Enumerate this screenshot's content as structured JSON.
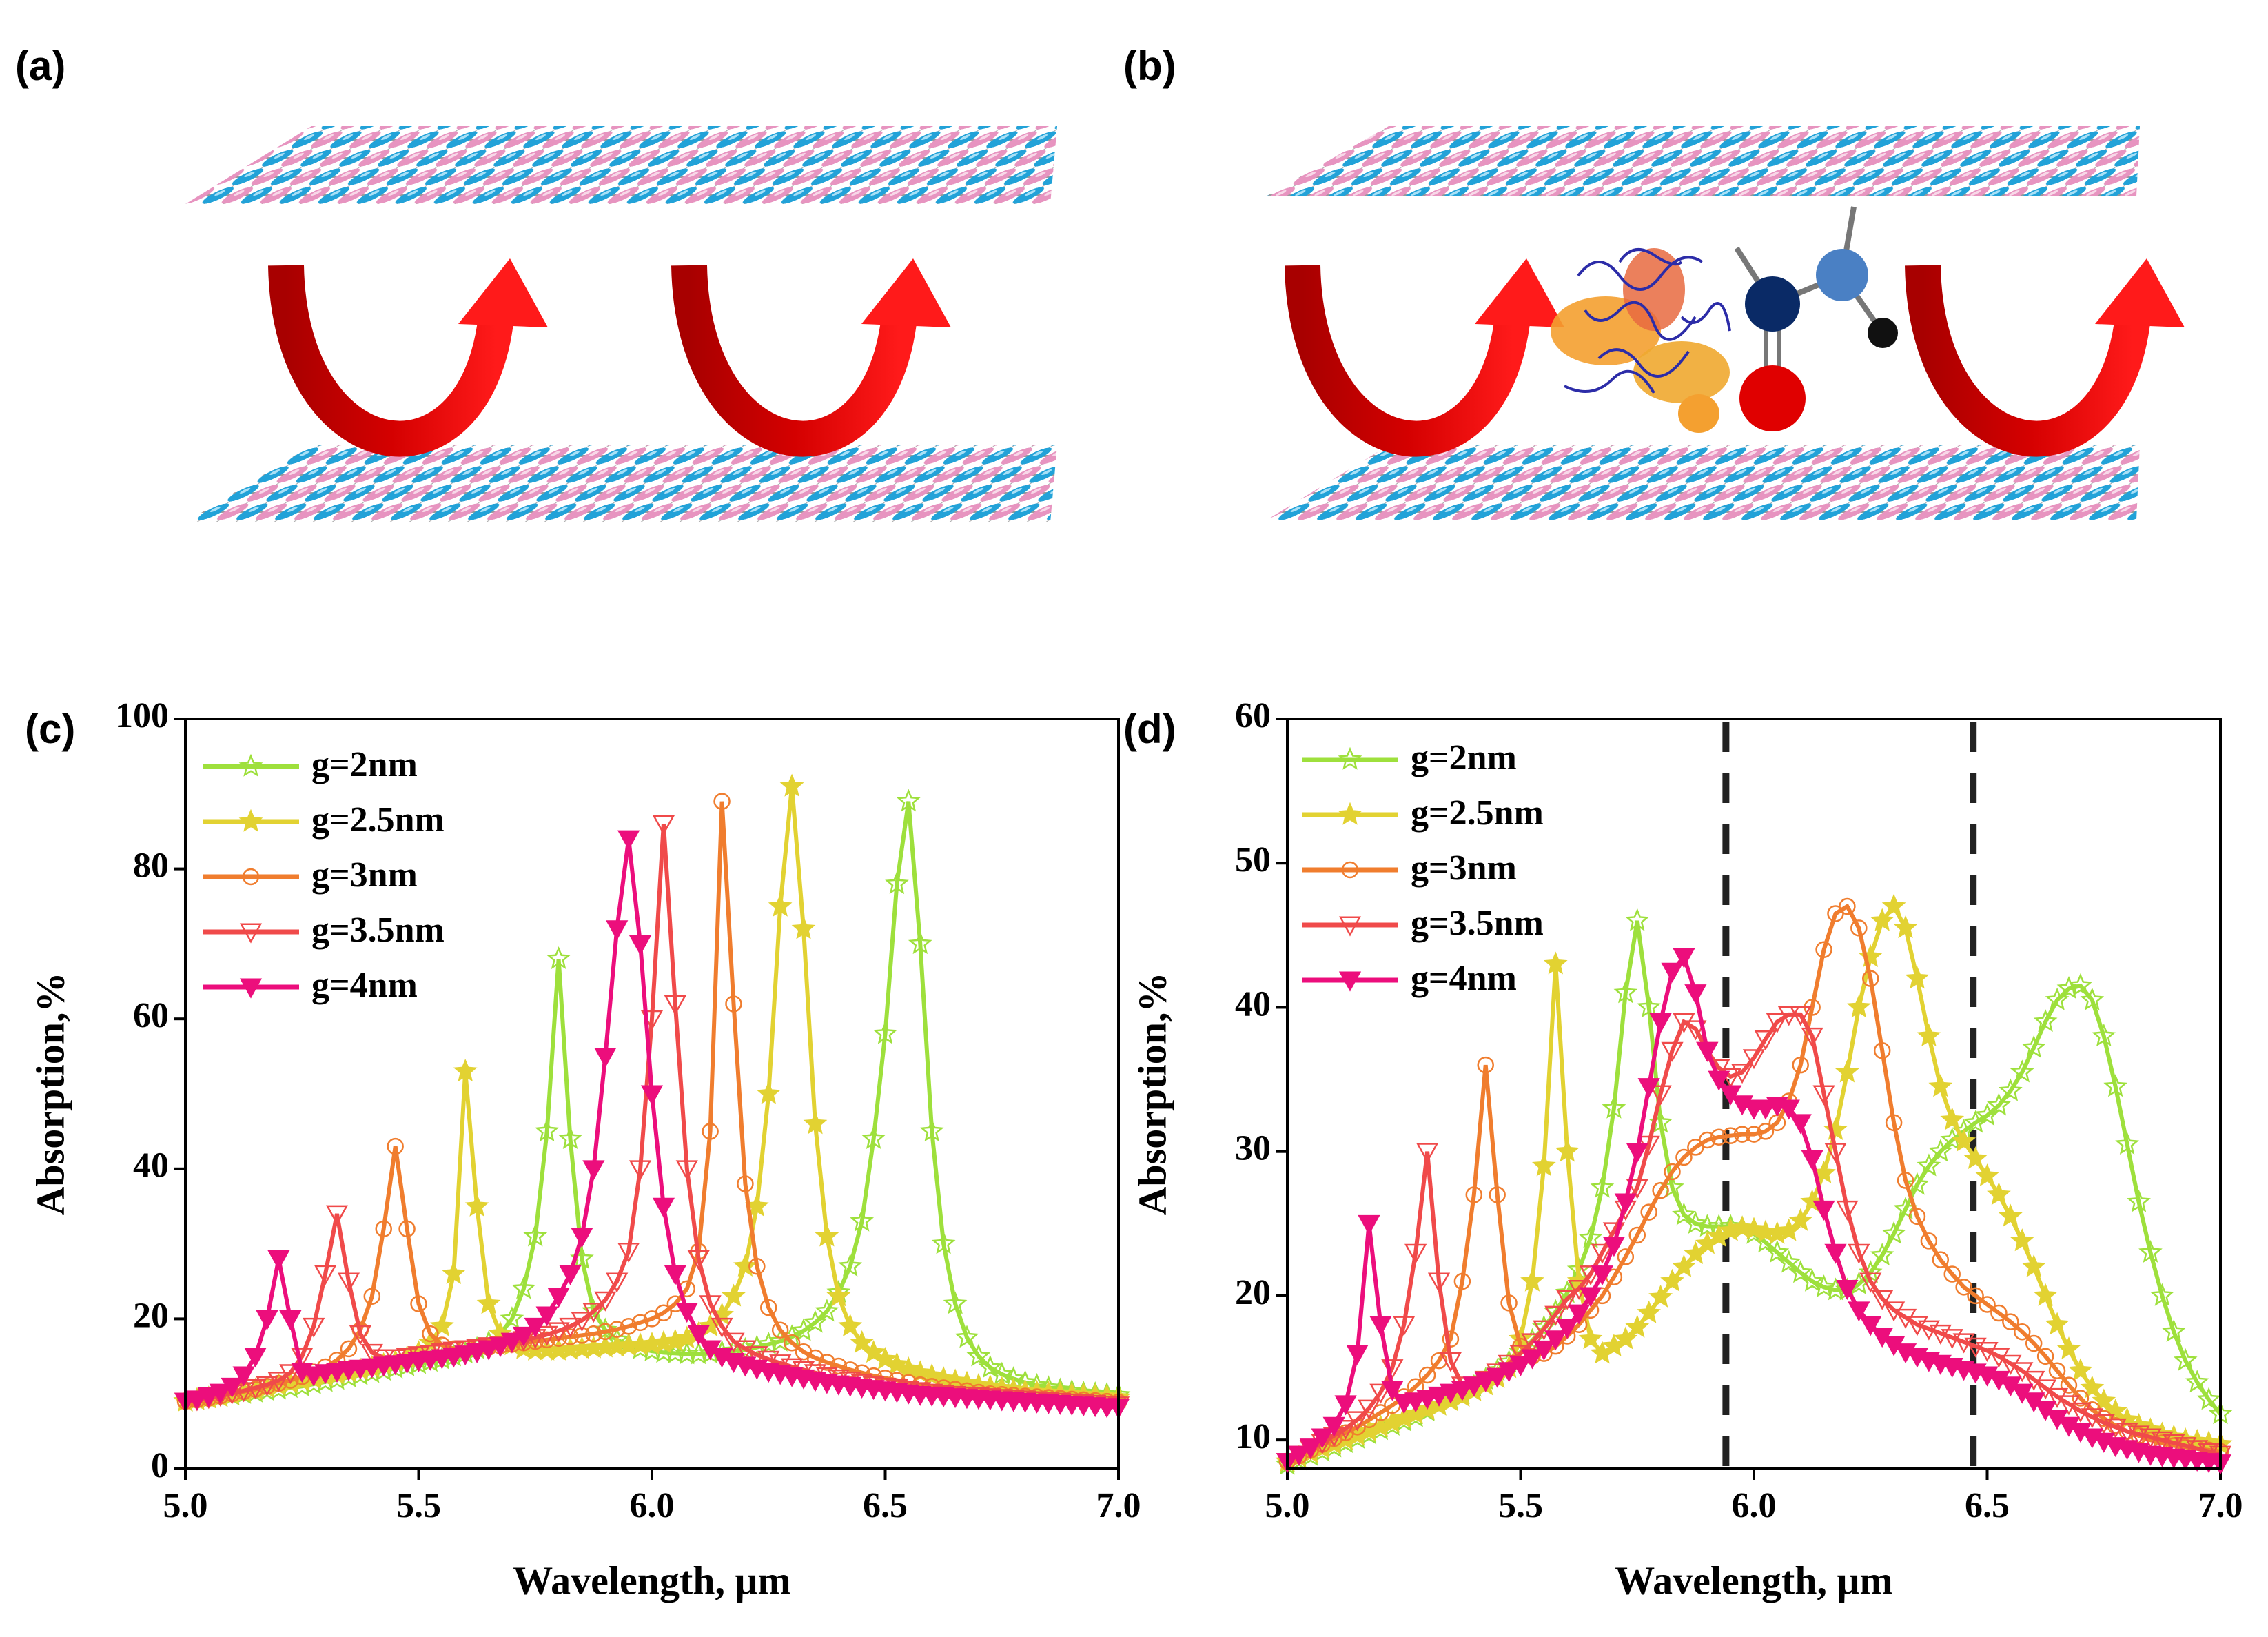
{
  "panel_labels": [
    "(a)",
    "(b)",
    "(c)",
    "(d)"
  ],
  "chart_data": [
    {
      "type": "line",
      "x_label": "Wavelength, μm",
      "y_label": "Absorption,%",
      "xlim": [
        5,
        7
      ],
      "xticks": [
        {
          "value": 5,
          "label": "5.0"
        },
        5.5,
        {
          "value": 6,
          "label": "6.0"
        },
        6.5,
        {
          "value": 7,
          "label": "7.0"
        }
      ],
      "ylim": [
        0,
        100
      ],
      "yticks": [
        0,
        20,
        40,
        60,
        80,
        100
      ],
      "legend": "upper left",
      "x": [
        5,
        5.025,
        5.05,
        5.075,
        5.1,
        5.125,
        5.15,
        5.175,
        5.2,
        5.225,
        5.25,
        5.275,
        5.3,
        5.325,
        5.35,
        5.375,
        5.4,
        5.425,
        5.45,
        5.475,
        5.5,
        5.525,
        5.55,
        5.575,
        5.6,
        5.625,
        5.65,
        5.675,
        5.7,
        5.725,
        5.75,
        5.775,
        5.8,
        5.825,
        5.85,
        5.875,
        5.9,
        5.925,
        5.95,
        5.975,
        6,
        6.025,
        6.05,
        6.075,
        6.1,
        6.125,
        6.15,
        6.175,
        6.2,
        6.225,
        6.25,
        6.275,
        6.3,
        6.325,
        6.35,
        6.375,
        6.4,
        6.425,
        6.45,
        6.475,
        6.5,
        6.525,
        6.55,
        6.575,
        6.6,
        6.625,
        6.65,
        6.675,
        6.7,
        6.725,
        6.75,
        6.775,
        6.8,
        6.825,
        6.85,
        6.875,
        6.9,
        6.925,
        6.95,
        6.975,
        7
      ],
      "series": [
        {
          "name": "g=2nm",
          "color": "#9ee03c",
          "marker": "star-open",
          "values": [
            9,
            9.2,
            9.4,
            9.6,
            9.8,
            10,
            10.2,
            10.4,
            10.6,
            10.8,
            11,
            11.3,
            11.6,
            11.9,
            12.2,
            12.5,
            12.8,
            13.1,
            13.4,
            13.7,
            14,
            14.3,
            14.6,
            15,
            15.4,
            16,
            16.8,
            18,
            20,
            24,
            31,
            45,
            68,
            44,
            28,
            21,
            18.5,
            17.2,
            16.5,
            16,
            15.7,
            15.5,
            15.4,
            15.3,
            15.3,
            15.4,
            15.5,
            15.7,
            15.9,
            16.2,
            16.6,
            17,
            17.6,
            18.4,
            19.5,
            21,
            23.5,
            27,
            33,
            44,
            58,
            78,
            89,
            70,
            45,
            30,
            22,
            17.5,
            15,
            13.5,
            12.6,
            12,
            11.5,
            11.1,
            10.8,
            10.5,
            10.3,
            10.1,
            10,
            9.9,
            9.8
          ]
        },
        {
          "name": "g=2.5nm",
          "color": "#e2d232",
          "marker": "star-filled",
          "values": [
            9,
            9.2,
            9.4,
            9.6,
            9.9,
            10.2,
            10.5,
            10.8,
            11.1,
            11.4,
            11.7,
            12,
            12.3,
            12.6,
            12.9,
            13.2,
            13.5,
            13.9,
            14.3,
            14.8,
            15.5,
            16.8,
            19,
            26,
            53,
            35,
            22,
            18,
            16.5,
            16,
            15.8,
            15.8,
            15.8,
            15.9,
            16,
            16.1,
            16.2,
            16.3,
            16.4,
            16.5,
            16.6,
            16.8,
            17,
            17.4,
            18,
            19,
            20.5,
            23,
            27,
            35,
            50,
            75,
            91,
            72,
            46,
            31,
            23,
            19,
            16.8,
            15.5,
            14.6,
            13.9,
            13.3,
            12.8,
            12.4,
            12,
            11.7,
            11.4,
            11.1,
            10.9,
            10.7,
            10.5,
            10.3,
            10.2,
            10.1,
            10,
            9.9,
            9.8,
            9.7,
            9.6,
            9.5
          ]
        },
        {
          "name": "g=3nm",
          "color": "#f07d2e",
          "marker": "circle-open",
          "values": [
            9,
            9.2,
            9.4,
            9.7,
            10,
            10.3,
            10.6,
            11,
            11.4,
            11.8,
            12.3,
            12.9,
            13.6,
            14.5,
            16,
            18.5,
            23,
            32,
            43,
            32,
            22,
            18,
            16.5,
            16,
            16,
            16.1,
            16.2,
            16.4,
            16.6,
            16.8,
            17,
            17.2,
            17.4,
            17.6,
            17.8,
            18,
            18.3,
            18.6,
            19,
            19.5,
            20,
            20.8,
            22,
            24,
            29,
            45,
            89,
            62,
            38,
            27,
            21.5,
            18.5,
            16.8,
            15.6,
            14.8,
            14.2,
            13.7,
            13.2,
            12.8,
            12.4,
            12.1,
            11.8,
            11.5,
            11.2,
            11,
            10.8,
            10.6,
            10.4,
            10.2,
            10,
            9.9,
            9.8,
            9.7,
            9.6,
            9.5,
            9.4,
            9.3,
            9.2,
            9.1,
            9,
            8.9
          ]
        },
        {
          "name": "g=3.5nm",
          "color": "#f04a4a",
          "marker": "triangle-open",
          "values": [
            9,
            9.2,
            9.5,
            9.8,
            10.1,
            10.4,
            10.8,
            11.2,
            11.8,
            12.8,
            15,
            19,
            26,
            34,
            25,
            18,
            15.5,
            14.8,
            14.8,
            15,
            15.2,
            15.4,
            15.6,
            15.8,
            16,
            16.2,
            16.4,
            16.6,
            16.9,
            17.2,
            17.5,
            17.9,
            18.4,
            19,
            19.8,
            21,
            22.5,
            25,
            29,
            40,
            60,
            86,
            62,
            40,
            28,
            22,
            19,
            17,
            16,
            15.2,
            14.6,
            14.1,
            13.6,
            13.2,
            12.8,
            12.4,
            12.1,
            11.8,
            11.5,
            11.2,
            11,
            10.8,
            10.6,
            10.4,
            10.2,
            10,
            9.9,
            9.8,
            9.7,
            9.6,
            9.5,
            9.4,
            9.3,
            9.2,
            9.1,
            9,
            8.9,
            8.8,
            8.7,
            8.6,
            8.5
          ]
        },
        {
          "name": "g=4nm",
          "color": "#ec0e7c",
          "marker": "triangle-filled",
          "values": [
            9,
            9.3,
            9.7,
            10.2,
            11,
            12.5,
            15,
            20,
            28,
            20,
            13,
            12.5,
            12.8,
            13,
            13.2,
            13.4,
            13.6,
            13.8,
            14,
            14.2,
            14.4,
            14.6,
            14.8,
            15,
            15.3,
            15.6,
            16,
            16.4,
            17,
            17.8,
            19,
            20.5,
            23,
            26,
            31,
            40,
            55,
            72,
            84,
            70,
            50,
            35,
            26,
            21,
            18,
            16,
            15,
            14.3,
            13.8,
            13.4,
            13,
            12.7,
            12.4,
            12.1,
            11.8,
            11.5,
            11.3,
            11.1,
            10.9,
            10.7,
            10.5,
            10.3,
            10.1,
            9.9,
            9.8,
            9.7,
            9.6,
            9.5,
            9.4,
            9.3,
            9.2,
            9.1,
            9,
            8.9,
            8.8,
            8.7,
            8.6,
            8.5,
            8.4,
            8.3,
            8.2
          ]
        }
      ]
    },
    {
      "type": "line",
      "x_label": "Wavelength, μm",
      "y_label": "Absorption,%",
      "xlim": [
        5,
        7
      ],
      "xticks": [
        {
          "value": 5,
          "label": "5.0"
        },
        5.5,
        {
          "value": 6,
          "label": "6.0"
        },
        6.5,
        {
          "value": 7,
          "label": "7.0"
        }
      ],
      "ylim": [
        8,
        60
      ],
      "yticks": [
        10,
        20,
        30,
        40,
        50,
        60
      ],
      "legend": "upper left",
      "vlines": [
        5.94,
        6.47
      ],
      "vline_color": "#222222",
      "x": [
        5,
        5.025,
        5.05,
        5.075,
        5.1,
        5.125,
        5.15,
        5.175,
        5.2,
        5.225,
        5.25,
        5.275,
        5.3,
        5.325,
        5.35,
        5.375,
        5.4,
        5.425,
        5.45,
        5.475,
        5.5,
        5.525,
        5.55,
        5.575,
        5.6,
        5.625,
        5.65,
        5.675,
        5.7,
        5.725,
        5.75,
        5.775,
        5.8,
        5.825,
        5.85,
        5.875,
        5.9,
        5.925,
        5.95,
        5.975,
        6,
        6.025,
        6.05,
        6.075,
        6.1,
        6.125,
        6.15,
        6.175,
        6.2,
        6.225,
        6.25,
        6.275,
        6.3,
        6.325,
        6.35,
        6.375,
        6.4,
        6.425,
        6.45,
        6.475,
        6.5,
        6.525,
        6.55,
        6.575,
        6.6,
        6.625,
        6.65,
        6.675,
        6.7,
        6.725,
        6.75,
        6.775,
        6.8,
        6.825,
        6.85,
        6.875,
        6.9,
        6.925,
        6.95,
        6.975,
        7
      ],
      "series": [
        {
          "name": "g=2nm",
          "color": "#9ee03c",
          "marker": "star-open",
          "values": [
            8.3,
            8.6,
            8.9,
            9.2,
            9.5,
            9.8,
            10.1,
            10.4,
            10.7,
            11,
            11.3,
            11.6,
            12,
            12.4,
            12.8,
            13.2,
            13.7,
            14.2,
            14.8,
            15.4,
            16.1,
            16.9,
            17.8,
            18.9,
            20.2,
            21.8,
            24,
            27.5,
            33,
            41,
            46,
            40,
            32,
            27.5,
            25.6,
            25,
            24.8,
            24.8,
            24.8,
            24.7,
            24.3,
            23.7,
            23,
            22.3,
            21.6,
            21,
            20.6,
            20.4,
            20.4,
            20.8,
            21.6,
            22.8,
            24.3,
            26,
            27.7,
            29,
            30,
            30.8,
            31.4,
            32,
            32.5,
            33.2,
            34.2,
            35.5,
            37.2,
            39,
            40.5,
            41.3,
            41.5,
            40.5,
            38,
            34.5,
            30.5,
            26.5,
            23,
            20,
            17.5,
            15.5,
            14,
            12.8,
            11.8
          ]
        },
        {
          "name": "g=2.5nm",
          "color": "#e2d232",
          "marker": "star-filled",
          "values": [
            8.5,
            8.8,
            9.1,
            9.4,
            9.7,
            10,
            10.3,
            10.6,
            10.9,
            11.2,
            11.5,
            11.8,
            12.1,
            12.4,
            12.7,
            13,
            13.4,
            13.8,
            14.3,
            15,
            17,
            21,
            29,
            43,
            30,
            21,
            17,
            16,
            16.5,
            17,
            17.8,
            18.8,
            19.9,
            21,
            22,
            22.9,
            23.6,
            24.1,
            24.5,
            24.7,
            24.6,
            24.4,
            24.3,
            24.5,
            25.2,
            26.5,
            28.5,
            31.5,
            35.5,
            40,
            43.5,
            46,
            47,
            45.5,
            42,
            38,
            34.5,
            32.2,
            30.7,
            29.5,
            28.3,
            27,
            25.5,
            23.8,
            22,
            20,
            18,
            16.3,
            14.8,
            13.6,
            12.7,
            12,
            11.4,
            11,
            10.7,
            10.4,
            10.2,
            10,
            9.9,
            9.8,
            9.7
          ]
        },
        {
          "name": "g=3nm",
          "color": "#f07d2e",
          "marker": "circle-open",
          "values": [
            8.5,
            8.9,
            9.3,
            9.7,
            10.1,
            10.5,
            10.9,
            11.4,
            11.9,
            12.4,
            13,
            13.7,
            14.5,
            15.5,
            17,
            21,
            27,
            36,
            27,
            19.5,
            16.5,
            15.8,
            16,
            16.5,
            17.2,
            18,
            19,
            20,
            21.3,
            22.7,
            24.2,
            25.8,
            27.3,
            28.6,
            29.6,
            30.3,
            30.8,
            31,
            31.1,
            31.2,
            31.2,
            31.4,
            32,
            33.5,
            36,
            40,
            44,
            46.5,
            47,
            45.5,
            42,
            37,
            32,
            28,
            25.5,
            23.8,
            22.5,
            21.5,
            20.6,
            20,
            19.4,
            18.8,
            18.2,
            17.5,
            16.7,
            15.8,
            14.8,
            13.8,
            12.9,
            12.1,
            11.5,
            11,
            10.6,
            10.3,
            10,
            9.8,
            9.6,
            9.5,
            9.4,
            9.3,
            9.2
          ]
        },
        {
          "name": "g=3.5nm",
          "color": "#f04a4a",
          "marker": "triangle-open",
          "values": [
            8.5,
            9,
            9.4,
            9.8,
            10.3,
            10.8,
            11.4,
            12.2,
            13.3,
            15,
            18,
            23,
            30,
            21,
            15.5,
            13.8,
            13.8,
            14.2,
            14.7,
            15.3,
            16,
            16.8,
            17.7,
            18.7,
            19.8,
            20.5,
            21.5,
            23,
            24.5,
            26,
            27.5,
            30.5,
            34,
            37,
            39,
            38.5,
            37,
            35.8,
            35.2,
            35.5,
            36.5,
            37.8,
            39,
            39.5,
            39.5,
            38,
            34,
            30,
            26,
            23,
            21,
            19.8,
            19,
            18.5,
            18,
            17.7,
            17.4,
            17.1,
            16.8,
            16.5,
            16.2,
            15.8,
            15.3,
            14.8,
            14.2,
            13.6,
            13,
            12.5,
            12,
            11.6,
            11.2,
            10.9,
            10.6,
            10.4,
            10.2,
            10,
            9.8,
            9.6,
            9.4,
            9.2,
            9
          ]
        },
        {
          "name": "g=4nm",
          "color": "#ec0e7c",
          "marker": "triangle-filled",
          "values": [
            8.5,
            9,
            9.5,
            10.2,
            11,
            12.5,
            16,
            25,
            18,
            13.5,
            12.6,
            12.7,
            12.9,
            13.1,
            13.3,
            13.5,
            13.8,
            14.1,
            14.4,
            14.8,
            15.2,
            15.7,
            16.3,
            17,
            17.8,
            18.8,
            20,
            21.5,
            23.5,
            26.5,
            30,
            34.5,
            39,
            42.5,
            43.5,
            41,
            37,
            35,
            34,
            33.3,
            33,
            33,
            33.2,
            33,
            32,
            29.5,
            26,
            23,
            20.5,
            19,
            18,
            17.2,
            16.6,
            16.1,
            15.8,
            15.5,
            15.3,
            15.1,
            14.9,
            14.7,
            14.5,
            14.2,
            13.8,
            13.3,
            12.7,
            12.1,
            11.5,
            11,
            10.6,
            10.2,
            9.9,
            9.6,
            9.4,
            9.2,
            9,
            8.9,
            8.8,
            8.7,
            8.6,
            8.5,
            8.4
          ]
        }
      ]
    }
  ]
}
